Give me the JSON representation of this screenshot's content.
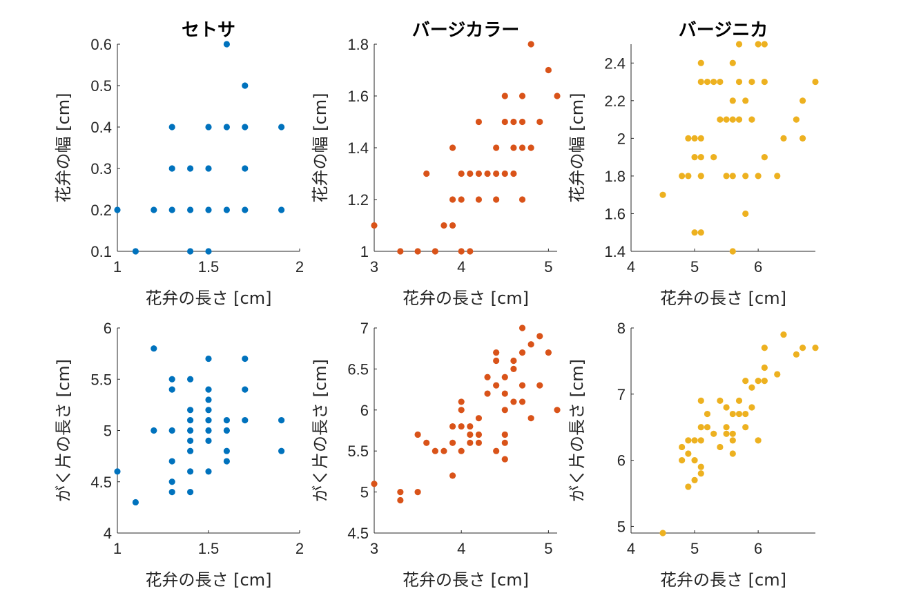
{
  "chart_data": [
    {
      "type": "scatter",
      "title": "セトサ",
      "xlabel": "花弁の長さ [cm]",
      "ylabel": "花弁の幅 [cm]",
      "xlim": [
        1,
        2
      ],
      "ylim": [
        0.1,
        0.6
      ],
      "xticks": [
        1,
        1.5,
        2
      ],
      "yticks": [
        0.1,
        0.2,
        0.3,
        0.4,
        0.5,
        0.6
      ],
      "grid": false,
      "color": "#0072BD",
      "points": [
        [
          1.0,
          0.2
        ],
        [
          1.1,
          0.1
        ],
        [
          1.2,
          0.2
        ],
        [
          1.3,
          0.2
        ],
        [
          1.3,
          0.3
        ],
        [
          1.3,
          0.4
        ],
        [
          1.4,
          0.1
        ],
        [
          1.4,
          0.2
        ],
        [
          1.4,
          0.3
        ],
        [
          1.5,
          0.1
        ],
        [
          1.5,
          0.2
        ],
        [
          1.5,
          0.3
        ],
        [
          1.5,
          0.4
        ],
        [
          1.6,
          0.2
        ],
        [
          1.6,
          0.4
        ],
        [
          1.6,
          0.6
        ],
        [
          1.7,
          0.2
        ],
        [
          1.7,
          0.3
        ],
        [
          1.7,
          0.4
        ],
        [
          1.7,
          0.5
        ],
        [
          1.9,
          0.2
        ],
        [
          1.9,
          0.4
        ]
      ]
    },
    {
      "type": "scatter",
      "title": "バージカラー",
      "xlabel": "花弁の長さ [cm]",
      "ylabel": "花弁の幅 [cm]",
      "xlim": [
        3,
        5.1
      ],
      "ylim": [
        1,
        1.8
      ],
      "xticks": [
        3,
        4,
        5
      ],
      "yticks": [
        1,
        1.2,
        1.4,
        1.6,
        1.8
      ],
      "grid": false,
      "color": "#D95319",
      "points": [
        [
          3.0,
          1.1
        ],
        [
          3.3,
          1.0
        ],
        [
          3.5,
          1.0
        ],
        [
          3.6,
          1.3
        ],
        [
          3.7,
          1.0
        ],
        [
          3.8,
          1.1
        ],
        [
          3.9,
          1.1
        ],
        [
          3.9,
          1.2
        ],
        [
          3.9,
          1.4
        ],
        [
          4.0,
          1.0
        ],
        [
          4.0,
          1.2
        ],
        [
          4.0,
          1.3
        ],
        [
          4.1,
          1.0
        ],
        [
          4.1,
          1.3
        ],
        [
          4.2,
          1.2
        ],
        [
          4.2,
          1.3
        ],
        [
          4.2,
          1.5
        ],
        [
          4.3,
          1.3
        ],
        [
          4.4,
          1.2
        ],
        [
          4.4,
          1.3
        ],
        [
          4.4,
          1.4
        ],
        [
          4.5,
          1.3
        ],
        [
          4.5,
          1.5
        ],
        [
          4.5,
          1.6
        ],
        [
          4.6,
          1.3
        ],
        [
          4.6,
          1.4
        ],
        [
          4.6,
          1.5
        ],
        [
          4.7,
          1.2
        ],
        [
          4.7,
          1.4
        ],
        [
          4.7,
          1.5
        ],
        [
          4.7,
          1.6
        ],
        [
          4.8,
          1.4
        ],
        [
          4.8,
          1.8
        ],
        [
          4.9,
          1.5
        ],
        [
          5.0,
          1.7
        ],
        [
          5.1,
          1.6
        ]
      ]
    },
    {
      "type": "scatter",
      "title": "バージニカ",
      "xlabel": "花弁の長さ [cm]",
      "ylabel": "花弁の幅 [cm]",
      "xlim": [
        4,
        6.9
      ],
      "ylim": [
        1.4,
        2.5
      ],
      "xticks": [
        4,
        5,
        6
      ],
      "yticks": [
        1.4,
        1.6,
        1.8,
        2,
        2.2,
        2.4
      ],
      "grid": false,
      "color": "#EDB120",
      "points": [
        [
          4.5,
          1.7
        ],
        [
          4.8,
          1.8
        ],
        [
          4.9,
          1.8
        ],
        [
          4.9,
          2.0
        ],
        [
          5.0,
          1.5
        ],
        [
          5.0,
          1.9
        ],
        [
          5.0,
          2.0
        ],
        [
          5.1,
          1.5
        ],
        [
          5.1,
          1.8
        ],
        [
          5.1,
          1.9
        ],
        [
          5.1,
          2.0
        ],
        [
          5.1,
          2.3
        ],
        [
          5.1,
          2.4
        ],
        [
          5.2,
          2.3
        ],
        [
          5.3,
          1.9
        ],
        [
          5.3,
          2.3
        ],
        [
          5.4,
          2.1
        ],
        [
          5.4,
          2.3
        ],
        [
          5.5,
          1.8
        ],
        [
          5.5,
          2.1
        ],
        [
          5.6,
          1.4
        ],
        [
          5.6,
          1.8
        ],
        [
          5.6,
          2.1
        ],
        [
          5.6,
          2.2
        ],
        [
          5.6,
          2.4
        ],
        [
          5.7,
          2.1
        ],
        [
          5.7,
          2.3
        ],
        [
          5.7,
          2.5
        ],
        [
          5.8,
          1.6
        ],
        [
          5.8,
          1.8
        ],
        [
          5.8,
          2.2
        ],
        [
          5.9,
          2.1
        ],
        [
          5.9,
          2.3
        ],
        [
          6.0,
          1.8
        ],
        [
          6.0,
          2.5
        ],
        [
          6.1,
          1.9
        ],
        [
          6.1,
          2.3
        ],
        [
          6.1,
          2.5
        ],
        [
          6.3,
          1.8
        ],
        [
          6.4,
          2.0
        ],
        [
          6.6,
          2.1
        ],
        [
          6.7,
          2.0
        ],
        [
          6.7,
          2.2
        ],
        [
          6.9,
          2.3
        ]
      ]
    },
    {
      "type": "scatter",
      "title": "",
      "xlabel": "花弁の長さ [cm]",
      "ylabel": "がく片の長さ [cm]",
      "xlim": [
        1,
        2
      ],
      "ylim": [
        4,
        6
      ],
      "xticks": [
        1,
        1.5,
        2
      ],
      "yticks": [
        4,
        4.5,
        5,
        5.5,
        6
      ],
      "grid": false,
      "color": "#0072BD",
      "points": [
        [
          1.0,
          4.6
        ],
        [
          1.1,
          4.3
        ],
        [
          1.2,
          5.0
        ],
        [
          1.2,
          5.8
        ],
        [
          1.3,
          4.4
        ],
        [
          1.3,
          4.5
        ],
        [
          1.3,
          4.7
        ],
        [
          1.3,
          5.0
        ],
        [
          1.3,
          5.4
        ],
        [
          1.3,
          5.5
        ],
        [
          1.4,
          4.4
        ],
        [
          1.4,
          4.6
        ],
        [
          1.4,
          4.8
        ],
        [
          1.4,
          4.9
        ],
        [
          1.4,
          5.0
        ],
        [
          1.4,
          5.1
        ],
        [
          1.4,
          5.2
        ],
        [
          1.4,
          5.5
        ],
        [
          1.5,
          4.6
        ],
        [
          1.5,
          4.9
        ],
        [
          1.5,
          5.0
        ],
        [
          1.5,
          5.1
        ],
        [
          1.5,
          5.2
        ],
        [
          1.5,
          5.3
        ],
        [
          1.5,
          5.4
        ],
        [
          1.5,
          5.7
        ],
        [
          1.6,
          4.7
        ],
        [
          1.6,
          4.8
        ],
        [
          1.6,
          5.0
        ],
        [
          1.6,
          5.1
        ],
        [
          1.7,
          5.1
        ],
        [
          1.7,
          5.4
        ],
        [
          1.7,
          5.7
        ],
        [
          1.9,
          4.8
        ],
        [
          1.9,
          5.1
        ]
      ]
    },
    {
      "type": "scatter",
      "title": "",
      "xlabel": "花弁の長さ [cm]",
      "ylabel": "がく片の長さ [cm]",
      "xlim": [
        3,
        5.1
      ],
      "ylim": [
        4.5,
        7
      ],
      "xticks": [
        3,
        4,
        5
      ],
      "yticks": [
        4.5,
        5,
        5.5,
        6,
        6.5,
        7
      ],
      "grid": false,
      "color": "#D95319",
      "points": [
        [
          3.0,
          5.1
        ],
        [
          3.3,
          4.9
        ],
        [
          3.3,
          5.0
        ],
        [
          3.5,
          5.0
        ],
        [
          3.5,
          5.7
        ],
        [
          3.6,
          5.6
        ],
        [
          3.7,
          5.5
        ],
        [
          3.8,
          5.5
        ],
        [
          3.9,
          5.2
        ],
        [
          3.9,
          5.6
        ],
        [
          3.9,
          5.8
        ],
        [
          4.0,
          5.5
        ],
        [
          4.0,
          5.8
        ],
        [
          4.0,
          6.0
        ],
        [
          4.0,
          6.1
        ],
        [
          4.1,
          5.6
        ],
        [
          4.1,
          5.7
        ],
        [
          4.1,
          5.8
        ],
        [
          4.2,
          5.6
        ],
        [
          4.2,
          5.7
        ],
        [
          4.2,
          5.9
        ],
        [
          4.3,
          6.2
        ],
        [
          4.3,
          6.4
        ],
        [
          4.4,
          5.5
        ],
        [
          4.4,
          6.3
        ],
        [
          4.4,
          6.6
        ],
        [
          4.4,
          6.7
        ],
        [
          4.5,
          5.4
        ],
        [
          4.5,
          5.6
        ],
        [
          4.5,
          5.7
        ],
        [
          4.5,
          6.0
        ],
        [
          4.5,
          6.2
        ],
        [
          4.5,
          6.4
        ],
        [
          4.6,
          6.1
        ],
        [
          4.6,
          6.5
        ],
        [
          4.6,
          6.6
        ],
        [
          4.7,
          6.1
        ],
        [
          4.7,
          6.3
        ],
        [
          4.7,
          6.7
        ],
        [
          4.7,
          7.0
        ],
        [
          4.8,
          5.9
        ],
        [
          4.8,
          6.8
        ],
        [
          4.9,
          6.3
        ],
        [
          4.9,
          6.9
        ],
        [
          5.0,
          6.7
        ],
        [
          5.1,
          6.0
        ]
      ]
    },
    {
      "type": "scatter",
      "title": "",
      "xlabel": "花弁の長さ [cm]",
      "ylabel": "がく片の長さ [cm]",
      "xlim": [
        4,
        6.9
      ],
      "ylim": [
        4.9,
        8
      ],
      "xticks": [
        4,
        5,
        6
      ],
      "yticks": [
        5,
        6,
        7,
        8
      ],
      "grid": false,
      "color": "#EDB120",
      "points": [
        [
          4.5,
          4.9
        ],
        [
          4.8,
          6.0
        ],
        [
          4.8,
          6.2
        ],
        [
          4.9,
          5.6
        ],
        [
          4.9,
          6.1
        ],
        [
          4.9,
          6.3
        ],
        [
          5.0,
          5.7
        ],
        [
          5.0,
          6.0
        ],
        [
          5.0,
          6.3
        ],
        [
          5.1,
          5.8
        ],
        [
          5.1,
          5.9
        ],
        [
          5.1,
          6.3
        ],
        [
          5.1,
          6.5
        ],
        [
          5.1,
          6.9
        ],
        [
          5.2,
          6.5
        ],
        [
          5.2,
          6.7
        ],
        [
          5.3,
          6.4
        ],
        [
          5.4,
          6.2
        ],
        [
          5.4,
          6.9
        ],
        [
          5.5,
          6.4
        ],
        [
          5.5,
          6.5
        ],
        [
          5.5,
          6.8
        ],
        [
          5.6,
          6.1
        ],
        [
          5.6,
          6.3
        ],
        [
          5.6,
          6.4
        ],
        [
          5.6,
          6.7
        ],
        [
          5.7,
          6.7
        ],
        [
          5.7,
          6.9
        ],
        [
          5.8,
          6.5
        ],
        [
          5.8,
          6.7
        ],
        [
          5.8,
          7.2
        ],
        [
          5.9,
          6.8
        ],
        [
          5.9,
          7.1
        ],
        [
          6.0,
          6.3
        ],
        [
          6.0,
          7.2
        ],
        [
          6.1,
          7.2
        ],
        [
          6.1,
          7.4
        ],
        [
          6.1,
          7.7
        ],
        [
          6.3,
          7.3
        ],
        [
          6.4,
          7.9
        ],
        [
          6.6,
          7.6
        ],
        [
          6.7,
          7.7
        ],
        [
          6.9,
          7.7
        ]
      ]
    }
  ]
}
